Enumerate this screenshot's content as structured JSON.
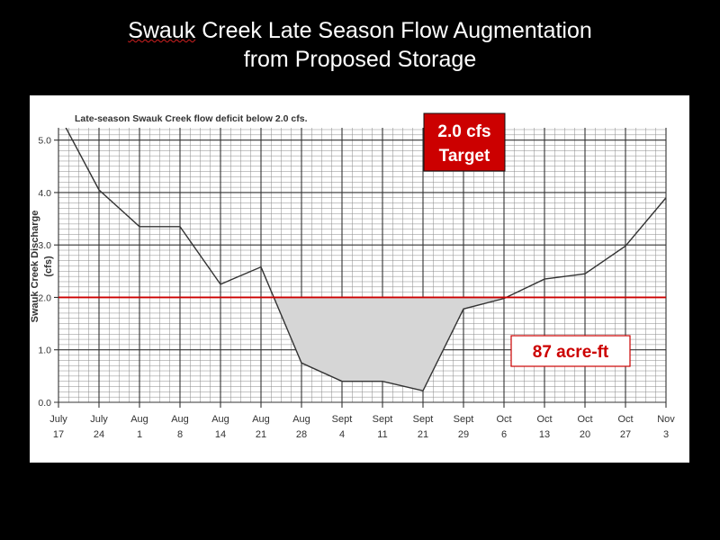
{
  "slide": {
    "title_word1": "Swauk",
    "title_rest": " Creek Late Season Flow Augmentation",
    "title_line2": "from Proposed Storage"
  },
  "chart_data": {
    "type": "line",
    "title": "Late-season Swauk Creek flow deficit below 2.0 cfs.",
    "ylabel_line1": "Swauk Creek Discharge",
    "ylabel_line2": "(cfs)",
    "ylim": [
      0,
      5.2
    ],
    "y_ticks": [
      "0.0",
      "1.0",
      "2.0",
      "3.0",
      "4.0",
      "5.0"
    ],
    "y_tick_values": [
      0,
      1,
      2,
      3,
      4,
      5
    ],
    "categories": [
      {
        "month": "July",
        "day": "17"
      },
      {
        "month": "July",
        "day": "24"
      },
      {
        "month": "Aug",
        "day": "1"
      },
      {
        "month": "Aug",
        "day": "8"
      },
      {
        "month": "Aug",
        "day": "14"
      },
      {
        "month": "Aug",
        "day": "21"
      },
      {
        "month": "Aug",
        "day": "28"
      },
      {
        "month": "Sept",
        "day": "4"
      },
      {
        "month": "Sept",
        "day": "11"
      },
      {
        "month": "Sept",
        "day": "21"
      },
      {
        "month": "Sept",
        "day": "29"
      },
      {
        "month": "Oct",
        "day": "6"
      },
      {
        "month": "Oct",
        "day": "13"
      },
      {
        "month": "Oct",
        "day": "20"
      },
      {
        "month": "Oct",
        "day": "27"
      },
      {
        "month": "Nov",
        "day": "3"
      }
    ],
    "series": [
      {
        "values": [
          5.5,
          4.05,
          3.35,
          3.35,
          2.25,
          2.58,
          0.75,
          0.4,
          0.4,
          0.22,
          1.78,
          1.98,
          2.35,
          2.45,
          2.98,
          3.9
        ]
      }
    ],
    "target_value": 2.0,
    "grid": true,
    "annotations": {
      "target_line1": "2.0 cfs",
      "target_line2": "Target",
      "deficit_volume": "87 acre-ft"
    },
    "colors": {
      "line": "#333333",
      "target_line": "#cc0000",
      "deficit_fill": "#d6d6d6",
      "target_box_bg": "#cc0000",
      "target_box_text": "#ffffff",
      "volume_box_text": "#cc0000"
    }
  }
}
